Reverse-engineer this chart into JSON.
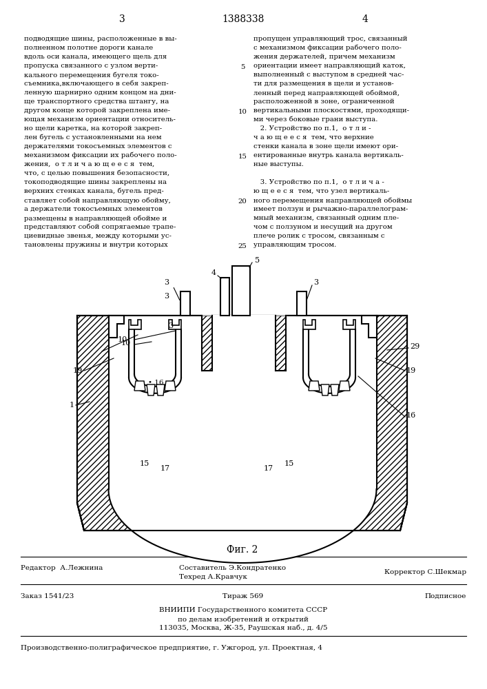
{
  "page_number_left": "3",
  "patent_number": "1388338",
  "page_number_right": "4",
  "col_left_text": [
    "подводящие шины, расположенные в вы-",
    "полненном полотне дороги канале",
    "вдоль оси канала, имеющего щель для",
    "пропуска связанного с узлом верти-",
    "кального перемещения бугеля токо-",
    "съемника,включающего в себя закреп-",
    "ленную шарнирно одним концом на дни-",
    "ще транспортного средства штангу, на",
    "другом конце которой закреплена име-",
    "ющая механизм ориентации относитель-",
    "но щели каретка, на которой закреп-",
    "лен бугель с установленными на нем",
    "держателями токосъемных элементов с",
    "механизмом фиксации их рабочего поло-",
    "жения,  о т л и ч а ю щ е е с я  тем,",
    "что, с целью повышения безопасности,",
    "токоподводящие шины закреплены на",
    "верхних стенках канала, бугель пред-",
    "ставляет собой направляющую обойму,",
    "а держатели токосъемных элементов",
    "размещены в направляющей обойме и",
    "представляют собой сопрягаемые трапе-",
    "циевидные звенья, между которыми ус-",
    "тановлены пружины и внутри которых"
  ],
  "col_right_text": [
    "пропущен управляющий трос, связанный",
    "с механизмом фиксации рабочего поло-",
    "жения держателей, причем механизм",
    "ориентации имеет направляющий каток,",
    "выполненный с выступом в средней час-",
    "ти для размещения в щели и установ-",
    "ленный перед направляющей обоймой,",
    "расположенной в зоне, ограниченной",
    "вертикальными плоскостями, проходящи-",
    "ми через боковые грани выступа.",
    "   2. Устройство по п.1,  о т л и -",
    "ч а ю щ е е с я  тем, что верхние",
    "стенки канала в зоне щели имеют ори-",
    "ентированные внутрь канала вертикаль-",
    "ные выступы.",
    "",
    "   3. Устройство по п.1,  о т л и ч а -",
    "ю щ е е с я  тем, что узел вертикаль-",
    "ного перемещения направляющей обоймы",
    "имеет ползун и рычажно-параллелограм-",
    "мный механизм, связанный одним пле-",
    "чом с ползуном и несущий на другом",
    "плече ролик с тросом, связанным с",
    "управляющим тросом."
  ],
  "line_numbers": [
    5,
    10,
    15,
    20,
    25
  ],
  "line_number_indices": [
    3,
    8,
    13,
    18,
    23
  ],
  "fig_caption": "Фиг. 2",
  "footer_line1_left": "Редактор  А.Лежнина",
  "footer_line1_center": "Составитель Э.Кондратенко",
  "footer_line1_center2": "Техред А.Кравчук",
  "footer_line1_right": "Корректор С.Шекмар",
  "footer_line2_left": "Заказ 1541/23",
  "footer_line2_center": "Тираж 569",
  "footer_line2_right": "Подписное",
  "footer_line3": "ВНИИПИ Государственного комитета СССР",
  "footer_line4": "по делам изобретений и открытий",
  "footer_line5": "113035, Москва, Ж-35, Раушская наб., д. 4/5",
  "footer_line6": "Производственно-полиграфическое предприятие, г. Ужгород, ул. Проектная, 4",
  "bg_color": "#ffffff",
  "text_color": "#000000",
  "hatch_color": "#555555"
}
